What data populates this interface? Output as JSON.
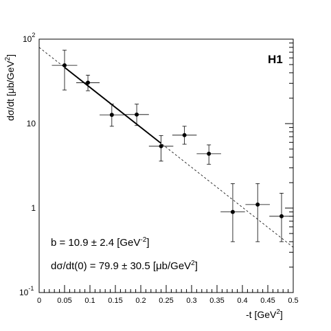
{
  "chart_data": {
    "type": "scatter",
    "experiment": "H1",
    "xlabel_main": "-t [GeV",
    "xlabel_exp": "2",
    "xlabel_end": "]",
    "ylabel_main": "dσ/dt [μb/GeV",
    "ylabel_exp": "2",
    "ylabel_end": "]",
    "xlim": [
      0,
      0.5
    ],
    "ylim": [
      0.1,
      100
    ],
    "yscale": "log",
    "x_ticks": [
      {
        "value": 0,
        "label": "0"
      },
      {
        "value": 0.05,
        "label": "0.05"
      },
      {
        "value": 0.1,
        "label": "0.1"
      },
      {
        "value": 0.15,
        "label": "0.15"
      },
      {
        "value": 0.2,
        "label": "0.2"
      },
      {
        "value": 0.25,
        "label": "0.25"
      },
      {
        "value": 0.3,
        "label": "0.3"
      },
      {
        "value": 0.35,
        "label": "0.35"
      },
      {
        "value": 0.4,
        "label": "0.4"
      },
      {
        "value": 0.45,
        "label": "0.45"
      },
      {
        "value": 0.5,
        "label": "0.5"
      }
    ],
    "y_ticks": [
      {
        "value": 0.1,
        "base": "10",
        "exp": "-1"
      },
      {
        "value": 1,
        "base": "1",
        "exp": ""
      },
      {
        "value": 10,
        "base": "10",
        "exp": ""
      },
      {
        "value": 100,
        "base": "10",
        "exp": "2"
      }
    ],
    "points": [
      {
        "x": 0.05,
        "y": 49,
        "xerr": 0.025,
        "ylo": 25,
        "yhi": 74
      },
      {
        "x": 0.096,
        "y": 30.5,
        "xerr": 0.023,
        "ylo": 24.5,
        "yhi": 37.5
      },
      {
        "x": 0.143,
        "y": 12.7,
        "xerr": 0.024,
        "ylo": 9.3,
        "yhi": 17
      },
      {
        "x": 0.192,
        "y": 12.8,
        "xerr": 0.024,
        "ylo": 9.5,
        "yhi": 17
      },
      {
        "x": 0.24,
        "y": 5.4,
        "xerr": 0.024,
        "ylo": 3.6,
        "yhi": 7.2
      },
      {
        "x": 0.286,
        "y": 7.3,
        "xerr": 0.024,
        "ylo": 5.7,
        "yhi": 9.3
      },
      {
        "x": 0.334,
        "y": 4.4,
        "xerr": 0.024,
        "ylo": 3.3,
        "yhi": 5.6
      },
      {
        "x": 0.381,
        "y": 0.9,
        "xerr": 0.024,
        "ylo": 0.4,
        "yhi": 1.95
      },
      {
        "x": 0.43,
        "y": 1.1,
        "xerr": 0.024,
        "ylo": 0.4,
        "yhi": 1.95
      },
      {
        "x": 0.477,
        "y": 0.8,
        "xerr": 0.024,
        "ylo": 0.4,
        "yhi": 1.5
      }
    ],
    "fit": {
      "type": "exponential",
      "intercept": 79.9,
      "slope": 10.9,
      "solid_range": [
        0.05,
        0.24
      ],
      "dashed_range": [
        0,
        0.5
      ]
    },
    "annotation_b": {
      "prefix": "b = 10.9 ± 2.4 [GeV",
      "exp": "-2",
      "suffix": "]"
    },
    "annotation_d": {
      "prefix": "dσ/dt(0) = 79.9 ± 30.5 [μb/GeV",
      "exp": "2",
      "suffix": "]"
    }
  }
}
